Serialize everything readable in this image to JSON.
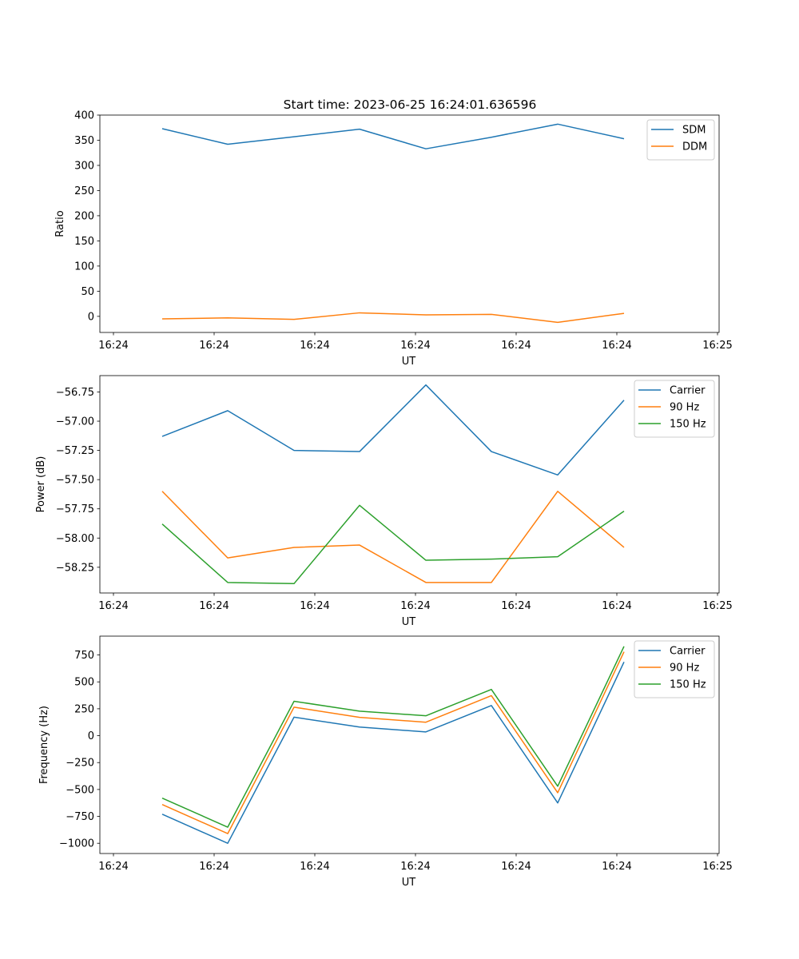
{
  "figure_title": "Start time: 2023-06-25 16:24:01.636596",
  "chart_data": [
    {
      "type": "line",
      "xlabel": "UT",
      "ylabel": "Ratio",
      "ylim": [
        -32,
        400
      ],
      "yticks": [
        0,
        50,
        100,
        150,
        200,
        250,
        300,
        350,
        400
      ],
      "ytick_labels": [
        "0",
        "50",
        "100",
        "150",
        "200",
        "250",
        "300",
        "350",
        "400"
      ],
      "xticks": [
        "16:24",
        "16:24",
        "16:24",
        "16:24",
        "16:24",
        "16:24",
        "16:25"
      ],
      "legend": "top-right",
      "series": [
        {
          "name": "SDM",
          "color": "#1f77b4",
          "values": [
            373,
            342,
            357,
            372,
            333,
            356,
            382,
            353
          ]
        },
        {
          "name": "DDM",
          "color": "#ff7f0e",
          "values": [
            -5,
            -3,
            -6,
            7,
            3,
            4,
            -12,
            6
          ]
        }
      ]
    },
    {
      "type": "line",
      "xlabel": "UT",
      "ylabel": "Power (dB)",
      "ylim": [
        -58.47,
        -56.61
      ],
      "yticks": [
        -58.25,
        -58.0,
        -57.75,
        -57.5,
        -57.25,
        -57.0,
        -56.75
      ],
      "ytick_labels": [
        "−58.25",
        "−58.00",
        "−57.75",
        "−57.50",
        "−57.25",
        "−57.00",
        "−56.75"
      ],
      "xticks": [
        "16:24",
        "16:24",
        "16:24",
        "16:24",
        "16:24",
        "16:24",
        "16:25"
      ],
      "legend": "top-right",
      "series": [
        {
          "name": "Carrier",
          "color": "#1f77b4",
          "values": [
            -57.13,
            -56.91,
            -57.25,
            -57.26,
            -56.69,
            -57.26,
            -57.46,
            -56.82
          ]
        },
        {
          "name": "90 Hz",
          "color": "#ff7f0e",
          "values": [
            -57.6,
            -58.17,
            -58.08,
            -58.06,
            -58.38,
            -58.38,
            -57.6,
            -58.08
          ]
        },
        {
          "name": "150 Hz",
          "color": "#2ca02c",
          "values": [
            -57.88,
            -58.38,
            -58.39,
            -57.72,
            -58.19,
            -58.18,
            -58.16,
            -57.77
          ]
        }
      ]
    },
    {
      "type": "line",
      "xlabel": "UT",
      "ylabel": "Frequency (Hz)",
      "ylim": [
        -1095,
        925
      ],
      "yticks": [
        -1000,
        -750,
        -500,
        -250,
        0,
        250,
        500,
        750
      ],
      "ytick_labels": [
        "−1000",
        "−750",
        "−500",
        "−250",
        "0",
        "250",
        "500",
        "750"
      ],
      "xticks": [
        "16:24",
        "16:24",
        "16:24",
        "16:24",
        "16:24",
        "16:24",
        "16:25"
      ],
      "legend": "top-right",
      "series": [
        {
          "name": "Carrier",
          "color": "#1f77b4",
          "values": [
            -730,
            -1000,
            172,
            80,
            35,
            280,
            -625,
            685
          ]
        },
        {
          "name": "90 Hz",
          "color": "#ff7f0e",
          "values": [
            -640,
            -910,
            265,
            170,
            125,
            372,
            -530,
            780
          ]
        },
        {
          "name": "150 Hz",
          "color": "#2ca02c",
          "values": [
            -580,
            -850,
            320,
            228,
            185,
            430,
            -470,
            830
          ]
        }
      ]
    }
  ]
}
